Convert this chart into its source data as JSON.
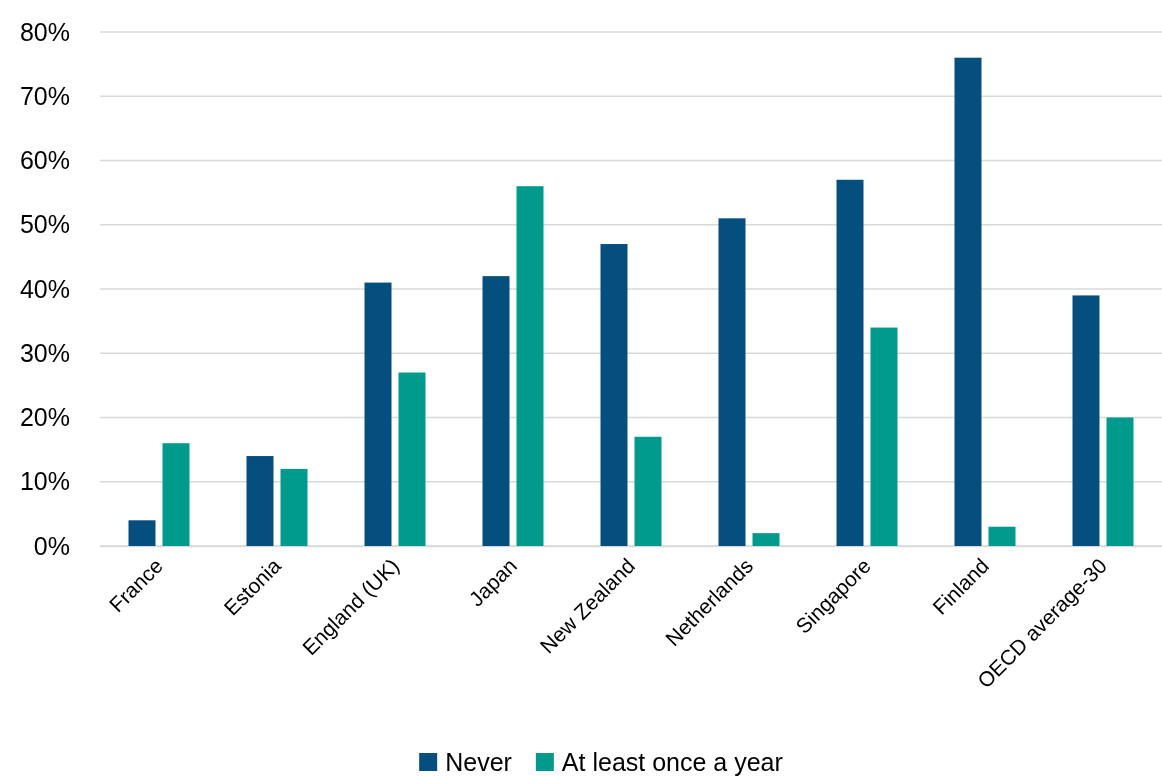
{
  "chart_data": {
    "type": "bar",
    "categories": [
      "France",
      "Estonia",
      "England (UK)",
      "Japan",
      "New Zealand",
      "Netherlands",
      "Singapore",
      "Finland",
      "OECD average-30"
    ],
    "series": [
      {
        "name": "Never",
        "color": "#054f7f",
        "values": [
          4,
          14,
          41,
          42,
          47,
          51,
          57,
          76,
          39
        ]
      },
      {
        "name": "At least once a year",
        "color": "#009b8d",
        "values": [
          16,
          12,
          27,
          56,
          17,
          2,
          34,
          3,
          20
        ]
      }
    ],
    "ylim": [
      0,
      80
    ],
    "yticks": [
      {
        "value": 0,
        "label": "0%"
      },
      {
        "value": 10,
        "label": "10%"
      },
      {
        "value": 20,
        "label": "20%"
      },
      {
        "value": 30,
        "label": "30%"
      },
      {
        "value": 40,
        "label": "40%"
      },
      {
        "value": 50,
        "label": "50%"
      },
      {
        "value": 60,
        "label": "60%"
      },
      {
        "value": 70,
        "label": "70%"
      },
      {
        "value": 80,
        "label": "80%"
      }
    ],
    "grid": "y",
    "legend": "bottom"
  }
}
